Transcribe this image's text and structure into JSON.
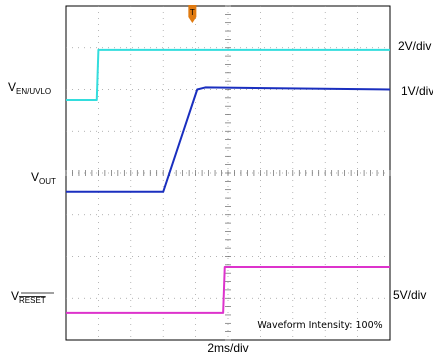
{
  "chart_data": {
    "type": "line",
    "x_divisions": 10,
    "y_divisions": 8,
    "xlabel": "2ms/div",
    "footer_text": "Waveform Intensity: 100%",
    "series": [
      {
        "name": "EN/UVLO",
        "label_main": "V",
        "label_sub": "EN/UVLO",
        "scale": "2V/div",
        "color": "#33dddd",
        "ground_div": 3.6,
        "points": [
          [
            0,
            1.35
          ],
          [
            0.95,
            1.35
          ],
          [
            1.0,
            2.55
          ],
          [
            10,
            2.55
          ]
        ]
      },
      {
        "name": "OUT",
        "label_main": "V",
        "label_sub": "OUT",
        "scale": "1V/div",
        "color": "#1a2fbf",
        "ground_div": 4.45,
        "points": [
          [
            0,
            0
          ],
          [
            3.0,
            0
          ],
          [
            4.05,
            2.45
          ],
          [
            4.3,
            2.5
          ],
          [
            10,
            2.45
          ]
        ]
      },
      {
        "name": "RESET",
        "label_main": "V",
        "label_sub": "RESET",
        "label_overline": true,
        "scale": "5V/div",
        "color": "#dd33cc",
        "ground_div": 7.35,
        "points": [
          [
            0,
            0
          ],
          [
            4.85,
            0
          ],
          [
            4.9,
            1.1
          ],
          [
            10,
            1.1
          ]
        ]
      }
    ],
    "trigger_marker": {
      "label": "T",
      "color": "#e07a10",
      "x_div": 3.9
    },
    "grid": true
  }
}
